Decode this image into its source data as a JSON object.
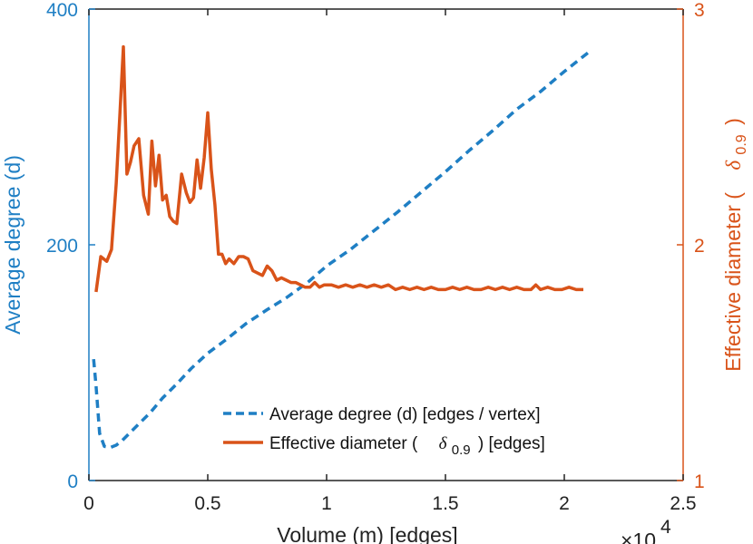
{
  "chart_data": {
    "type": "line",
    "x_multiplier_label": "×10",
    "x_multiplier_exponent": "4",
    "xlabel": "Volume (m) [edges]",
    "ylabel_left": "Average degree (d)",
    "ylabel_right_prefix": "Effective diameter (",
    "ylabel_right_symbol": "δ",
    "ylabel_right_subscript": "0.9",
    "ylabel_right_suffix": ")",
    "xlim": [
      0,
      25000
    ],
    "ylim_left": [
      0,
      400
    ],
    "ylim_right": [
      1,
      3
    ],
    "x_ticks": [
      {
        "value": 0,
        "label": "0"
      },
      {
        "value": 5000,
        "label": "0.5"
      },
      {
        "value": 10000,
        "label": "1"
      },
      {
        "value": 15000,
        "label": "1.5"
      },
      {
        "value": 20000,
        "label": "2"
      },
      {
        "value": 25000,
        "label": "2.5"
      }
    ],
    "y_left_ticks": [
      {
        "value": 0,
        "label": "0"
      },
      {
        "value": 200,
        "label": "200"
      },
      {
        "value": 400,
        "label": "400"
      }
    ],
    "y_right_ticks": [
      {
        "value": 1,
        "label": "1"
      },
      {
        "value": 2,
        "label": "2"
      },
      {
        "value": 3,
        "label": "3"
      }
    ],
    "series": [
      {
        "name": "Average degree (d) [edges / vertex]",
        "axis": "left",
        "color": "#1f7fc4",
        "dash": true,
        "x": [
          200,
          300,
          450,
          650,
          900,
          1150,
          1400,
          1700,
          2100,
          2600,
          3100,
          3700,
          4300,
          5000,
          5800,
          6600,
          7500,
          8300,
          9200,
          10000,
          11000,
          12000,
          13000,
          14000,
          15000,
          16000,
          17000,
          18000,
          19000,
          20000,
          21000
        ],
        "values": [
          103,
          80,
          40,
          29,
          28,
          30,
          34,
          40,
          48,
          58,
          70,
          82,
          95,
          108,
          120,
          133,
          145,
          155,
          168,
          182,
          196,
          212,
          228,
          245,
          262,
          280,
          297,
          315,
          330,
          347,
          363
        ]
      },
      {
        "name": "Effective diameter ( δ0.9) [edges]",
        "legend_prefix": "Effective diameter (",
        "legend_symbol": "δ",
        "legend_subscript": "0.9",
        "legend_suffix": ") [edges]",
        "axis": "right",
        "color": "#d95319",
        "dash": false,
        "x": [
          300,
          500,
          750,
          950,
          1150,
          1300,
          1450,
          1600,
          1750,
          1900,
          2100,
          2300,
          2500,
          2650,
          2800,
          2950,
          3100,
          3250,
          3400,
          3550,
          3700,
          3900,
          4100,
          4250,
          4400,
          4550,
          4700,
          4850,
          5000,
          5150,
          5300,
          5450,
          5600,
          5750,
          5900,
          6100,
          6300,
          6500,
          6700,
          6900,
          7100,
          7300,
          7500,
          7700,
          7900,
          8100,
          8300,
          8500,
          8700,
          8900,
          9100,
          9300,
          9500,
          9700,
          9900,
          10200,
          10500,
          10800,
          11100,
          11400,
          11700,
          12000,
          12300,
          12600,
          12900,
          13200,
          13500,
          13800,
          14100,
          14400,
          14700,
          15000,
          15300,
          15600,
          15900,
          16200,
          16500,
          16800,
          17100,
          17400,
          17700,
          18000,
          18300,
          18600,
          18800,
          19000,
          19300,
          19600,
          19900,
          20200,
          20500,
          20800
        ],
        "values": [
          1.8,
          1.95,
          1.93,
          1.98,
          2.26,
          2.55,
          2.84,
          2.3,
          2.35,
          2.42,
          2.45,
          2.21,
          2.13,
          2.44,
          2.25,
          2.38,
          2.19,
          2.21,
          2.12,
          2.1,
          2.09,
          2.3,
          2.22,
          2.18,
          2.2,
          2.36,
          2.24,
          2.37,
          2.56,
          2.32,
          2.17,
          1.96,
          1.96,
          1.92,
          1.94,
          1.92,
          1.95,
          1.95,
          1.94,
          1.89,
          1.88,
          1.87,
          1.91,
          1.89,
          1.85,
          1.86,
          1.85,
          1.84,
          1.84,
          1.83,
          1.82,
          1.82,
          1.84,
          1.82,
          1.83,
          1.83,
          1.82,
          1.83,
          1.82,
          1.83,
          1.82,
          1.83,
          1.82,
          1.83,
          1.81,
          1.82,
          1.81,
          1.82,
          1.81,
          1.82,
          1.81,
          1.81,
          1.82,
          1.81,
          1.82,
          1.81,
          1.81,
          1.82,
          1.81,
          1.82,
          1.81,
          1.82,
          1.81,
          1.81,
          1.83,
          1.81,
          1.82,
          1.81,
          1.81,
          1.82,
          1.81,
          1.81
        ]
      }
    ],
    "legend_placement": "bottom-center"
  }
}
